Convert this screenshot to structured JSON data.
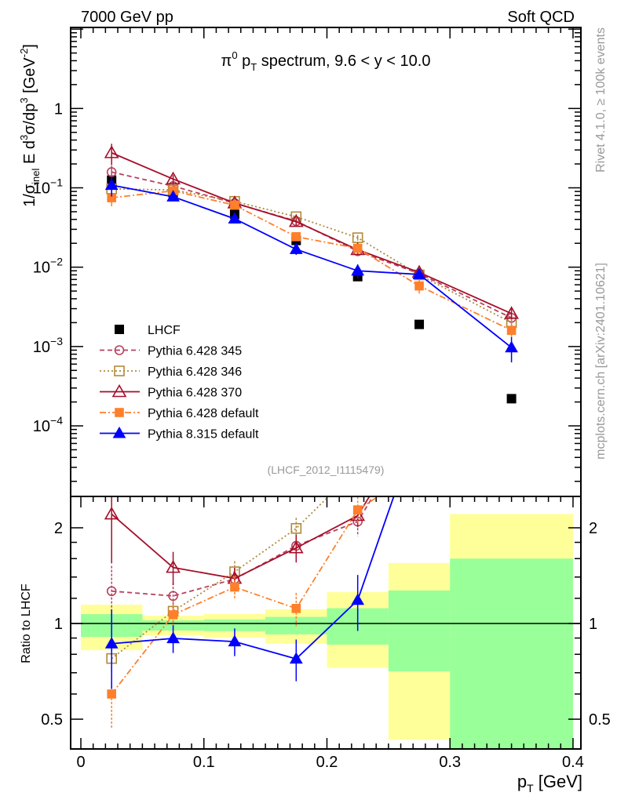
{
  "header": {
    "left": "7000 GeV pp",
    "right": "Soft QCD"
  },
  "side_text": {
    "rivet": "Rivet 4.1.0, ≥ 100k events",
    "mcplots": "mcplots.cern.ch [arXiv:2401.10621]"
  },
  "analysis_id": "(LHCF_2012_I1115479)",
  "chart_data": {
    "type": "line",
    "title_parts": [
      "π",
      "0",
      " p",
      "T",
      " spectrum, 9.6 < y < 10.0"
    ],
    "ylabel_parts": [
      "1/σ",
      "inel",
      " E d",
      "3",
      "σ/dp",
      "3",
      " [GeV",
      "-2",
      "]"
    ],
    "xlabel_parts": [
      "p",
      "T",
      " [GeV]"
    ],
    "ratio_ylabel": "Ratio to LHCF",
    "xlim": [
      -0.0083,
      0.4064
    ],
    "ylim": [
      1.29e-05,
      10.5
    ],
    "yscale": "log",
    "ratio_ylim": [
      0.403,
      2.51
    ],
    "x_ticks": [
      {
        "v": 0,
        "label": "0"
      },
      {
        "v": 0.1,
        "label": "0.1"
      },
      {
        "v": 0.2,
        "label": "0.2"
      },
      {
        "v": 0.3,
        "label": "0.3"
      },
      {
        "v": 0.4,
        "label": "0.4"
      }
    ],
    "y_ticks": [
      {
        "v": 1,
        "label": "1",
        "sup": ""
      },
      {
        "v": 0.1,
        "label": "10",
        "sup": "−1"
      },
      {
        "v": 0.01,
        "label": "10",
        "sup": "−2"
      },
      {
        "v": 0.001,
        "label": "10",
        "sup": "−3"
      },
      {
        "v": 0.0001,
        "label": "10",
        "sup": "−4"
      }
    ],
    "ratio_ticks": [
      {
        "v": 0.5,
        "label": "0.5"
      },
      {
        "v": 1,
        "label": "1"
      },
      {
        "v": 2,
        "label": "2"
      }
    ],
    "x": [
      0.025,
      0.075,
      0.125,
      0.175,
      0.225,
      0.275,
      0.35
    ],
    "bin_edges": [
      0,
      0.05,
      0.1,
      0.15,
      0.2,
      0.25,
      0.3,
      0.4
    ],
    "reference": {
      "name": "LHCF",
      "values": [
        0.125,
        0.086,
        0.0464,
        0.0217,
        0.0076,
        0.0019,
        0.00022
      ],
      "color": "#000000"
    },
    "ratio_band_stat": [
      [
        0.908,
        1.07
      ],
      [
        0.95,
        1.023
      ],
      [
        0.946,
        1.03
      ],
      [
        0.924,
        1.049
      ],
      [
        0.858,
        1.117
      ],
      [
        0.707,
        1.27
      ],
      [
        0.3,
        1.6
      ]
    ],
    "ratio_band_total": [
      [
        0.824,
        1.146
      ],
      [
        0.918,
        1.058
      ],
      [
        0.902,
        1.073
      ],
      [
        0.864,
        1.109
      ],
      [
        0.725,
        1.255
      ],
      [
        0.431,
        1.55
      ],
      [
        0.3,
        2.21
      ]
    ],
    "band_colors": {
      "stat": "#99ff99",
      "total": "#ffff99"
    },
    "series": [
      {
        "name": "Pythia 6.428 345",
        "color": "#b8405e",
        "marker": "circle-open",
        "dash": "6,4",
        "values": [
          0.158,
          0.105,
          0.064,
          0.0381,
          0.0159,
          0.0083,
          0.0023
        ],
        "rel_err": [
          0.2,
          0.1,
          0.08,
          0.1,
          0.1,
          0.08,
          0.12
        ]
      },
      {
        "name": "Pythia 6.428 346",
        "color": "#b08a3a",
        "marker": "square-open",
        "dash": "2,3",
        "values": [
          0.097,
          0.094,
          0.0675,
          0.0432,
          0.0235,
          0.008,
          0.002
        ],
        "rel_err": [
          0.1,
          0.08,
          0.08,
          0.08,
          0.08,
          0.08,
          0.12
        ]
      },
      {
        "name": "Pythia 6.428 370",
        "color": "#a50f2a",
        "marker": "triangle-open",
        "dash": "",
        "values": [
          0.276,
          0.129,
          0.0643,
          0.0375,
          0.0166,
          0.0086,
          0.0026
        ],
        "rel_err": [
          0.3,
          0.12,
          0.08,
          0.1,
          0.08,
          0.08,
          0.15
        ]
      },
      {
        "name": "Pythia 6.428 default",
        "color": "#ff7f2a",
        "marker": "square-filled",
        "dash": "8,3,2,3",
        "values": [
          0.075,
          0.0916,
          0.0604,
          0.0242,
          0.0173,
          0.0058,
          0.0016
        ],
        "rel_err": [
          0.22,
          0.08,
          0.08,
          0.12,
          0.1,
          0.2,
          0.2
        ]
      },
      {
        "name": "Pythia 8.315 default",
        "color": "#0000ff",
        "marker": "triangle-filled",
        "dash": "",
        "values": [
          0.108,
          0.0772,
          0.0407,
          0.0168,
          0.009,
          0.0081,
          0.00097
        ],
        "rel_err": [
          0.28,
          0.1,
          0.1,
          0.15,
          0.2,
          0.12,
          0.35
        ]
      }
    ],
    "legend_placement": "lower-left"
  }
}
